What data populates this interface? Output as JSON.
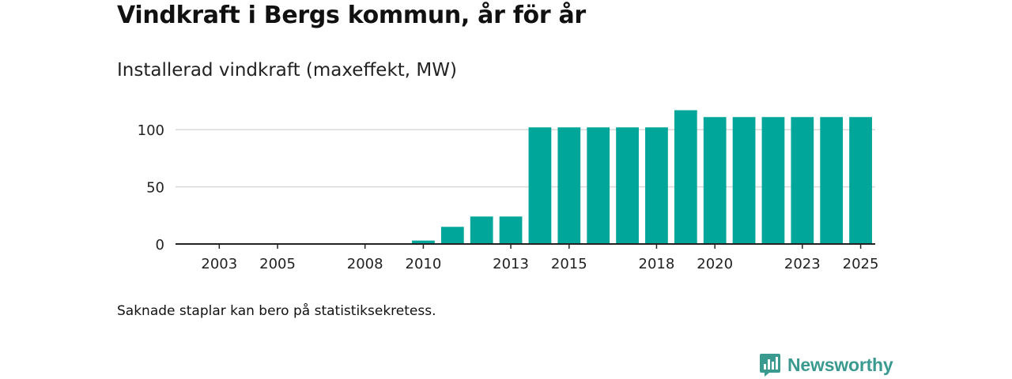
{
  "header": {
    "title": "Vindkraft i Bergs kommun, år för år",
    "subtitle": "Installerad vindkraft (maxeffekt, MW)"
  },
  "footnote": "Saknade staplar kan bero på statistiksekretess.",
  "brand": {
    "name": "Newsworthy",
    "color": "#3a9a8f"
  },
  "colors": {
    "bar": "#00a699",
    "grid": "#d9d9d9",
    "axis": "#222222",
    "text": "#222222"
  },
  "chart_data": {
    "type": "bar",
    "title": "Installerad vindkraft (maxeffekt, MW)",
    "xlabel": "",
    "ylabel": "",
    "ylim": [
      0,
      125
    ],
    "grid": true,
    "yticks": [
      0,
      50,
      100
    ],
    "categories": [
      2002,
      2003,
      2004,
      2005,
      2006,
      2007,
      2008,
      2009,
      2010,
      2011,
      2012,
      2013,
      2014,
      2015,
      2016,
      2017,
      2018,
      2019,
      2020,
      2021,
      2022,
      2023,
      2024,
      2025
    ],
    "xtick_labels": [
      2003,
      2005,
      2008,
      2010,
      2013,
      2015,
      2018,
      2020,
      2023,
      2025
    ],
    "values": [
      0,
      0,
      0,
      0,
      0,
      0,
      0,
      0,
      3,
      15,
      24,
      24,
      102,
      102,
      102,
      102,
      102,
      117,
      111,
      111,
      111,
      111,
      111,
      111
    ]
  }
}
